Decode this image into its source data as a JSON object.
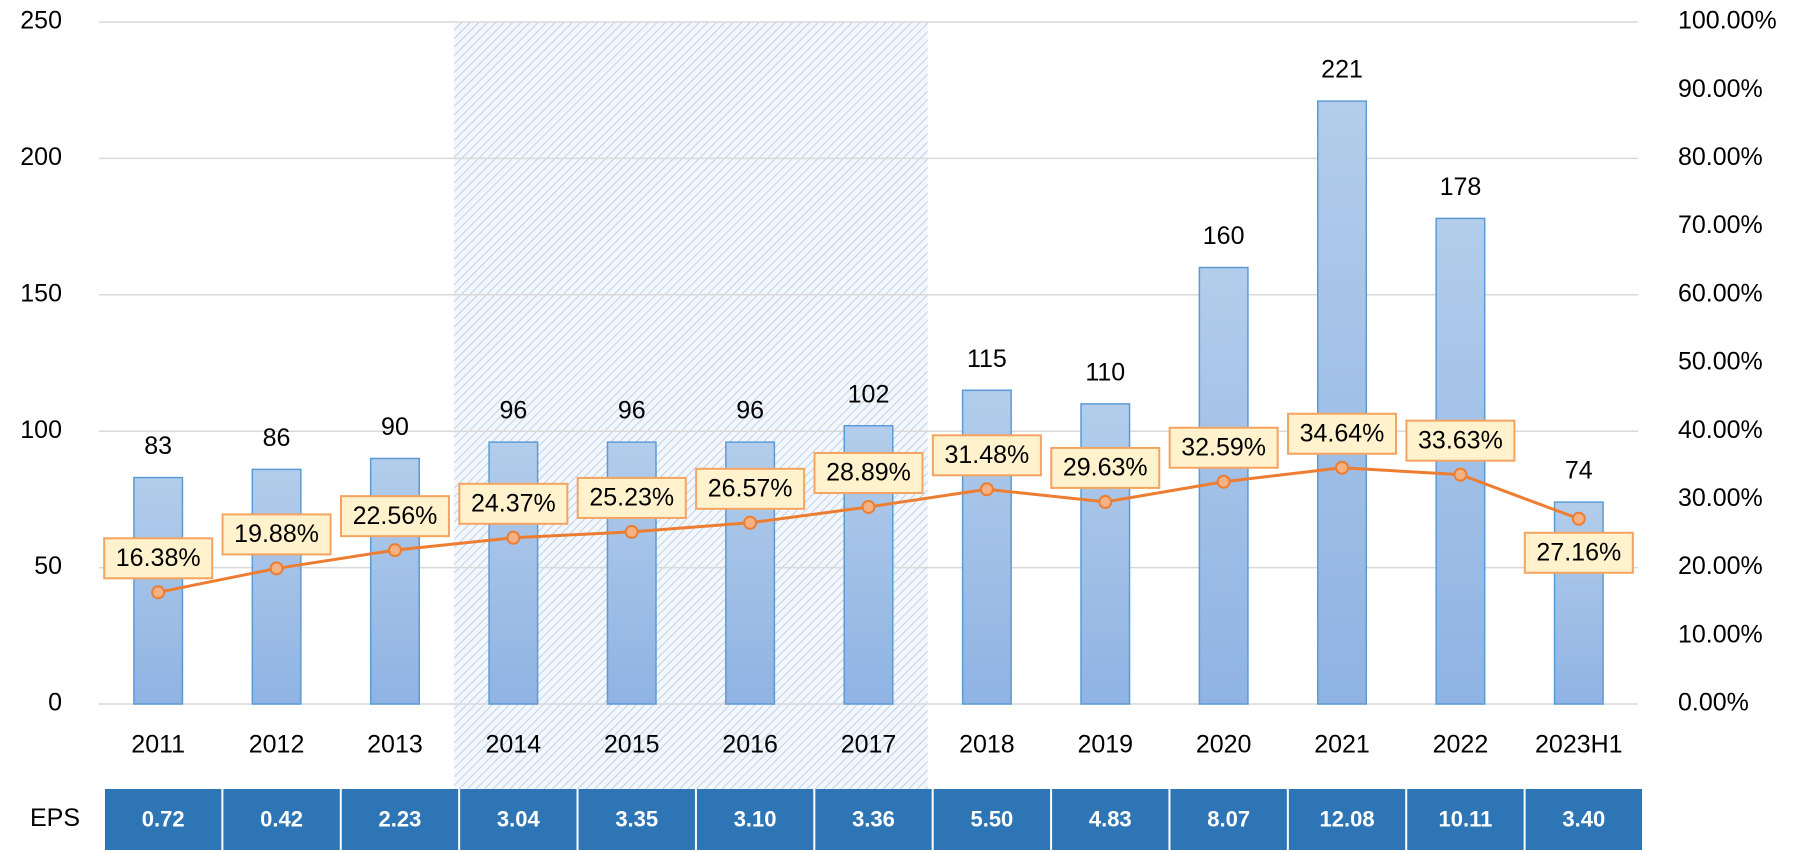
{
  "chart_data": {
    "type": "bar_line",
    "categories": [
      "2011",
      "2012",
      "2013",
      "2014",
      "2015",
      "2016",
      "2017",
      "2018",
      "2019",
      "2020",
      "2021",
      "2022",
      "2023H1"
    ],
    "series": [
      {
        "type": "bar",
        "color": "#9dbde6",
        "values": [
          83,
          86,
          90,
          96,
          96,
          96,
          102,
          115,
          110,
          160,
          221,
          178,
          74
        ]
      },
      {
        "type": "line",
        "axis": "y2",
        "color": "#ed7d31",
        "values": [
          16.38,
          19.88,
          22.56,
          24.37,
          25.23,
          26.57,
          28.89,
          31.48,
          29.63,
          32.59,
          34.64,
          33.63,
          27.16
        ],
        "value_labels": [
          "16.38%",
          "19.88%",
          "22.56%",
          "24.37%",
          "25.23%",
          "26.57%",
          "28.89%",
          "31.48%",
          "29.63%",
          "32.59%",
          "34.64%",
          "33.63%",
          "27.16%"
        ]
      }
    ],
    "ylim": [
      0,
      250
    ],
    "yticks": [
      0,
      50,
      100,
      150,
      200,
      250
    ],
    "y2lim": [
      0,
      100
    ],
    "y2ticks": [
      {
        "value": 0,
        "label": "0.00%"
      },
      {
        "value": 10,
        "label": "10.00%"
      },
      {
        "value": 20,
        "label": "20.00%"
      },
      {
        "value": 30,
        "label": "30.00%"
      },
      {
        "value": 40,
        "label": "40.00%"
      },
      {
        "value": 50,
        "label": "50.00%"
      },
      {
        "value": 60,
        "label": "60.00%"
      },
      {
        "value": 70,
        "label": "70.00%"
      },
      {
        "value": 80,
        "label": "80.00%"
      },
      {
        "value": 90,
        "label": "90.00%"
      },
      {
        "value": 100,
        "label": "100.00%"
      }
    ],
    "grid": true,
    "table_row": {
      "label": "EPS",
      "values": [
        "0.72",
        "0.42",
        "2.23",
        "3.04",
        "3.35",
        "3.10",
        "3.36",
        "5.50",
        "4.83",
        "8.07",
        "12.08",
        "10.11",
        "3.40"
      ],
      "color": "#2e75b6"
    }
  }
}
